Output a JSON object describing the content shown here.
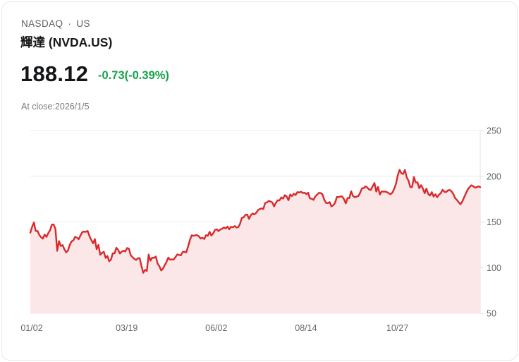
{
  "header": {
    "exchange": "NASDAQ",
    "separator": "·",
    "region": "US",
    "instrument_name": "輝達 (NVDA.US)",
    "price": "188.12",
    "change": "-0.73(-0.39%)",
    "close_note": "At close:2026/1/5"
  },
  "colors": {
    "line_red": "#d9292b",
    "area_fill": "#fbe7e7",
    "change_green": "#17a24b",
    "grid": "#ececec",
    "axis": "#dfe1e4",
    "tick_text": "#64676b"
  },
  "chart_data": {
    "type": "area",
    "xlabel": "",
    "ylabel": "",
    "ylim": [
      50,
      250
    ],
    "y_ticks": [
      250,
      200,
      150,
      100,
      50
    ],
    "y_axis_position": "right",
    "grid": true,
    "legend": false,
    "x_tick_labels": [
      "01/02",
      "03/19",
      "06/02",
      "08/14",
      "10/27"
    ],
    "x_tick_indices": [
      0,
      53,
      103,
      153,
      204
    ],
    "values": [
      138.3,
      144.5,
      149.4,
      140.1,
      140.1,
      135.9,
      133.2,
      131.8,
      136.2,
      133.6,
      137.7,
      140.8,
      147.1,
      147.2,
      142.6,
      118.4,
      129.0,
      123.7,
      124.7,
      120.1,
      116.7,
      118.7,
      124.8,
      128.7,
      129.8,
      133.6,
      132.8,
      131.1,
      135.3,
      138.9,
      139.4,
      139.2,
      140.1,
      134.4,
      130.3,
      126.6,
      131.3,
      120.2,
      124.9,
      114.1,
      116.0,
      117.3,
      110.6,
      112.7,
      107.0,
      108.8,
      115.7,
      115.6,
      121.7,
      119.5,
      115.4,
      117.5,
      118.5,
      117.7,
      121.4,
      120.7,
      113.8,
      111.4,
      109.7,
      108.4,
      110.2,
      110.4,
      101.8,
      94.3,
      97.6,
      96.3,
      114.3,
      107.6,
      110.9,
      110.7,
      112.2,
      104.5,
      101.5,
      96.9,
      98.9,
      102.7,
      106.4,
      111.0,
      108.7,
      109.0,
      108.9,
      111.6,
      114.5,
      113.8,
      113.5,
      117.1,
      117.4,
      116.7,
      123.0,
      129.9,
      135.3,
      134.8,
      135.4,
      135.6,
      134.4,
      131.8,
      132.8,
      131.3,
      135.5,
      134.8,
      139.2,
      135.1,
      137.4,
      141.2,
      141.9,
      140.0,
      141.7,
      142.6,
      144.0,
      142.8,
      145.0,
      142.0,
      144.7,
      144.1,
      145.5,
      143.9,
      144.2,
      147.9,
      154.3,
      155.0,
      157.8,
      158.0,
      153.3,
      157.3,
      159.3,
      158.2,
      160.0,
      162.9,
      164.1,
      164.9,
      164.1,
      170.7,
      171.4,
      173.0,
      172.4,
      171.4,
      167.0,
      170.8,
      173.7,
      173.5,
      176.8,
      175.5,
      179.3,
      177.9,
      173.7,
      180.0,
      178.3,
      180.8,
      179.4,
      182.7,
      182.1,
      183.2,
      181.6,
      182.0,
      180.5,
      182.0,
      175.6,
      175.4,
      174.2,
      178.0,
      179.8,
      181.8,
      181.6,
      180.2,
      174.2,
      170.8,
      170.6,
      171.7,
      167.0,
      168.3,
      170.8,
      177.3,
      177.2,
      177.8,
      177.8,
      174.9,
      170.3,
      176.2,
      176.1,
      183.6,
      178.4,
      177.0,
      177.7,
      178.2,
      181.9,
      186.6,
      187.0,
      188.9,
      187.6,
      185.5,
      185.0,
      189.1,
      192.6,
      183.2,
      188.3,
      180.0,
      183.4,
      183.2,
      183.2,
      182.6,
      181.3,
      180.3,
      182.1,
      186.3,
      191.5,
      201.0,
      207.0,
      203.2,
      202.5,
      206.9,
      198.7,
      195.2,
      188.1,
      188.2,
      199.1,
      193.2,
      193.3,
      186.9,
      190.2,
      186.6,
      181.4,
      186.5,
      180.6,
      178.9,
      182.6,
      177.8,
      180.3,
      177.0,
      179.8,
      181.5,
      185.2,
      183.0,
      182.7,
      184.5,
      185.0,
      183.5,
      180.6,
      176.0,
      174.0,
      171.5,
      169.4,
      172.3,
      176.8,
      181.2,
      185.3,
      188.0,
      190.1,
      189.3,
      187.5,
      188.0,
      188.9,
      188.1
    ]
  }
}
